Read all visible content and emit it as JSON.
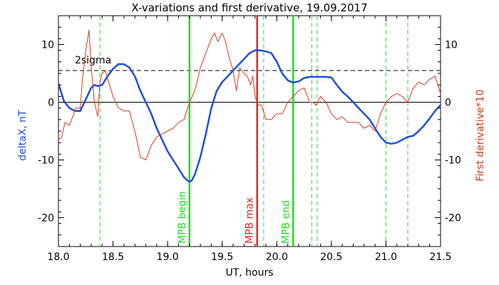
{
  "chart_data": {
    "type": "line",
    "title": "X-variations and first derivative, 19.09.2017",
    "xlabel": "UT, hours",
    "ylabel_left": "deltaX, nT",
    "ylabel_right": "First derivative*10",
    "xlim": [
      18.0,
      21.5
    ],
    "ylim": [
      -25,
      15
    ],
    "x_ticks": [
      "18.0",
      "18.5",
      "19.0",
      "19.5",
      "20.0",
      "20.5",
      "21.0",
      "21.5"
    ],
    "y_ticks": [
      "10",
      "0",
      "-10",
      "-20"
    ],
    "colors": {
      "deltaX": "#1f4fd8",
      "derivative": "#d23c1e",
      "mpb_lines": "#22dd22",
      "mpb_max_line": "#e0281e",
      "reference": "#000000"
    },
    "threshold": {
      "label": "2sigma",
      "value": 5.5
    },
    "series": [
      {
        "key": "deltaX",
        "x": [
          18.0,
          18.05,
          18.1,
          18.15,
          18.2,
          18.25,
          18.3,
          18.33,
          18.36,
          18.4,
          18.45,
          18.5,
          18.55,
          18.6,
          18.65,
          18.7,
          18.75,
          18.8,
          18.85,
          18.9,
          18.95,
          19.0,
          19.05,
          19.1,
          19.15,
          19.18,
          19.2,
          19.22,
          19.25,
          19.3,
          19.35,
          19.4,
          19.45,
          19.5,
          19.55,
          19.6,
          19.65,
          19.7,
          19.75,
          19.8,
          19.85,
          19.9,
          19.95,
          20.0,
          20.05,
          20.1,
          20.15,
          20.2,
          20.25,
          20.3,
          20.35,
          20.4,
          20.45,
          20.5,
          20.55,
          20.6,
          20.65,
          20.7,
          20.75,
          20.8,
          20.85,
          20.9,
          20.95,
          21.0,
          21.05,
          21.1,
          21.15,
          21.2,
          21.25,
          21.3,
          21.35,
          21.4,
          21.45,
          21.5
        ],
        "y": [
          3.2,
          0.2,
          -1.0,
          -1.5,
          -1.5,
          0.5,
          2.5,
          3.0,
          2.8,
          3.0,
          4.5,
          5.8,
          6.6,
          6.6,
          6.0,
          4.5,
          2.0,
          0.0,
          -2.0,
          -4.5,
          -6.5,
          -8.5,
          -10.0,
          -11.5,
          -13.0,
          -13.5,
          -13.8,
          -13.6,
          -12.5,
          -9.5,
          -5.5,
          -1.0,
          2.0,
          3.5,
          4.5,
          5.5,
          6.5,
          7.5,
          8.5,
          9.0,
          9.0,
          8.8,
          8.5,
          7.0,
          5.0,
          3.8,
          3.4,
          3.6,
          4.2,
          4.4,
          4.4,
          4.4,
          4.4,
          4.3,
          3.0,
          1.8,
          1.0,
          0.0,
          -1.0,
          -2.0,
          -3.0,
          -4.5,
          -6.0,
          -7.0,
          -7.2,
          -7.0,
          -6.5,
          -6.0,
          -5.8,
          -5.0,
          -4.0,
          -2.8,
          -1.5,
          -0.5
        ]
      },
      {
        "key": "derivative",
        "x": [
          18.0,
          18.03,
          18.06,
          18.1,
          18.13,
          18.16,
          18.2,
          18.22,
          18.25,
          18.28,
          18.3,
          18.33,
          18.36,
          18.38,
          18.4,
          18.43,
          18.46,
          18.5,
          18.55,
          18.6,
          18.65,
          18.7,
          18.75,
          18.8,
          18.85,
          18.9,
          18.95,
          19.0,
          19.05,
          19.1,
          19.15,
          19.2,
          19.25,
          19.3,
          19.35,
          19.4,
          19.43,
          19.46,
          19.5,
          19.53,
          19.56,
          19.6,
          19.63,
          19.66,
          19.7,
          19.73,
          19.76,
          19.78,
          19.8,
          19.83,
          19.86,
          19.9,
          19.95,
          20.0,
          20.05,
          20.1,
          20.15,
          20.2,
          20.25,
          20.3,
          20.33,
          20.36,
          20.4,
          20.45,
          20.5,
          20.55,
          20.6,
          20.65,
          20.7,
          20.75,
          20.8,
          20.85,
          20.9,
          20.95,
          21.0,
          21.05,
          21.1,
          21.15,
          21.2,
          21.25,
          21.3,
          21.35,
          21.4,
          21.45,
          21.5
        ],
        "y": [
          -6.5,
          -6.0,
          -3.5,
          -4.0,
          -2.5,
          -1.0,
          -1.0,
          4.0,
          9.0,
          12.5,
          6.0,
          0.0,
          -2.5,
          3.5,
          5.0,
          5.5,
          3.5,
          1.0,
          -1.0,
          -1.5,
          -1.5,
          -5.0,
          -9.5,
          -10.0,
          -7.5,
          -6.0,
          -5.5,
          -5.0,
          -4.5,
          -3.5,
          -3.0,
          0.0,
          2.0,
          6.0,
          8.5,
          11.0,
          12.0,
          10.5,
          12.0,
          10.5,
          8.0,
          5.5,
          2.0,
          6.0,
          5.0,
          4.5,
          3.0,
          4.5,
          1.0,
          -0.5,
          -0.5,
          -3.0,
          -3.0,
          -2.0,
          -2.0,
          0.0,
          1.0,
          2.0,
          2.5,
          0.0,
          0.0,
          -0.5,
          1.0,
          0.0,
          -2.0,
          -3.0,
          -2.5,
          -3.5,
          -3.5,
          -3.5,
          -4.5,
          -4.0,
          -5.0,
          -2.0,
          0.0,
          1.0,
          1.5,
          1.0,
          0.0,
          2.5,
          3.5,
          3.0,
          4.0,
          4.5,
          1.5
        ]
      }
    ],
    "vertical_markers": [
      {
        "x": 18.38,
        "style": "dashed",
        "color": "mpb_lines"
      },
      {
        "x": 19.2,
        "style": "solid",
        "color": "mpb_lines",
        "label": "MPB begin"
      },
      {
        "x": 19.82,
        "style": "solid",
        "color": "mpb_max_line",
        "label": "MPB max"
      },
      {
        "x": 19.88,
        "style": "dashed",
        "color": "mpb_lines"
      },
      {
        "x": 20.15,
        "style": "solid",
        "color": "mpb_lines",
        "label": "MPB end"
      },
      {
        "x": 20.32,
        "style": "dashed",
        "color": "mpb_lines"
      },
      {
        "x": 20.37,
        "style": "dashed",
        "color": "mpb_lines"
      },
      {
        "x": 21.0,
        "style": "dashed",
        "color": "mpb_lines"
      },
      {
        "x": 21.2,
        "style": "dashed",
        "color": "mpb_lines"
      }
    ]
  }
}
